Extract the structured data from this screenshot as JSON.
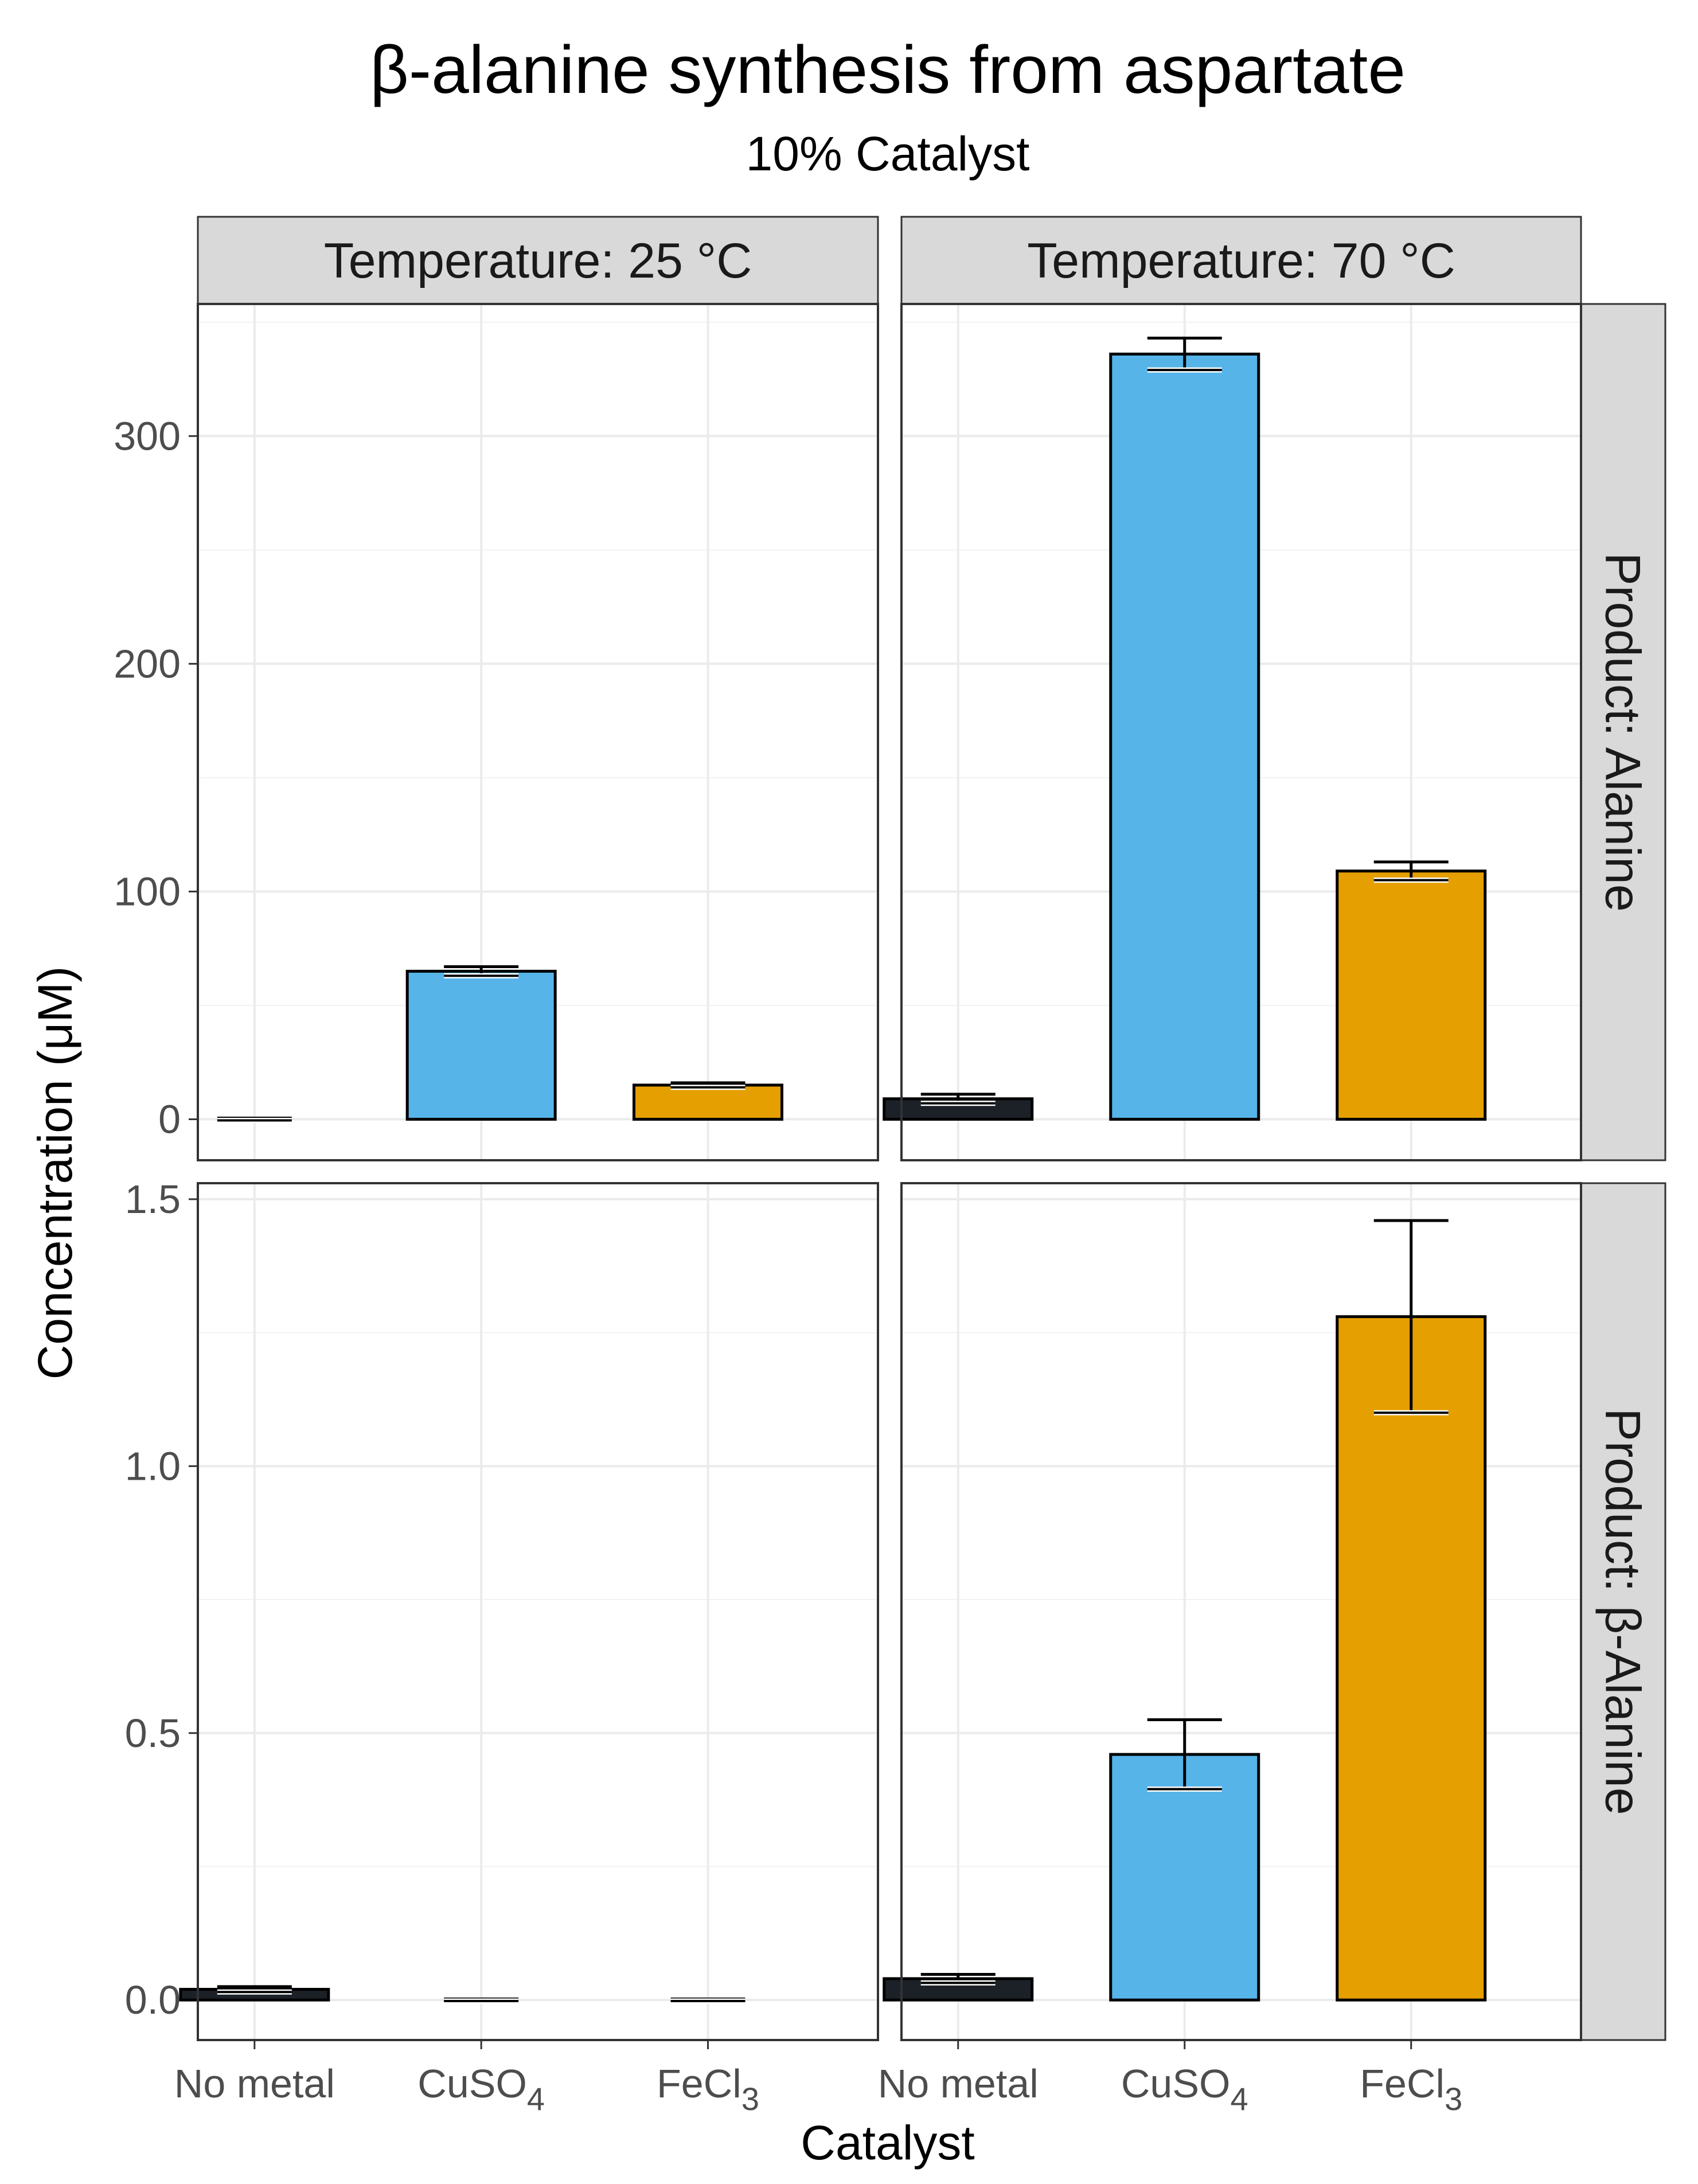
{
  "chart_data": {
    "type": "bar",
    "title": "β-alanine synthesis from aspartate",
    "subtitle": "10% Catalyst",
    "xlabel": "Catalyst",
    "ylabel": "Concentration (μM)",
    "categories": [
      {
        "main": "No metal",
        "sub": ""
      },
      {
        "main": "CuSO",
        "sub": "4"
      },
      {
        "main": "FeCl",
        "sub": "3"
      }
    ],
    "category_colors": [
      "#1c2128",
      "#56b4e9",
      "#e69f00"
    ],
    "column_facets": [
      "Temperature: 25 °C",
      "Temperature: 70 °C"
    ],
    "row_facets": [
      {
        "label": "Product: Alanine",
        "ylim": [
          -18,
          358
        ],
        "ticks": [
          0,
          100,
          200,
          300
        ],
        "tick_labels": [
          "0",
          "100",
          "200",
          "300"
        ],
        "panels": [
          {
            "values": [
              0,
              65,
              15
            ],
            "errors": [
              0.5,
              2,
              1
            ]
          },
          {
            "values": [
              9,
              336,
              109
            ],
            "errors": [
              2,
              7,
              4
            ]
          }
        ]
      },
      {
        "label": "Product: β-Alanine",
        "ylim": [
          -0.075,
          1.53
        ],
        "ticks": [
          0.0,
          0.5,
          1.0,
          1.5
        ],
        "tick_labels": [
          "0.0",
          "0.5",
          "1.0",
          "1.5"
        ],
        "panels": [
          {
            "values": [
              0.02,
              0,
              0
            ],
            "errors": [
              0.005,
              0.002,
              0.002
            ]
          },
          {
            "values": [
              0.04,
              0.46,
              1.28
            ],
            "errors": [
              0.008,
              0.065,
              0.18
            ]
          }
        ]
      }
    ],
    "grid": true,
    "legend": "none"
  }
}
